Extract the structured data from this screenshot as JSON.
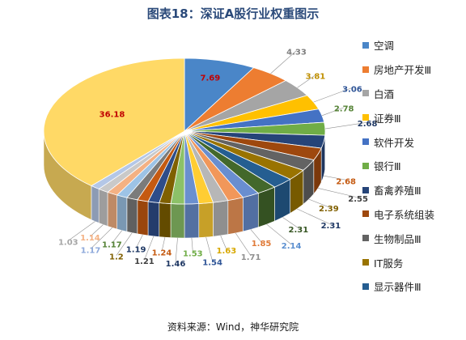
{
  "chart_data": {
    "type": "pie",
    "title": "图表18：深证A股行业权重图示",
    "values": [
      7.69,
      4.33,
      3.81,
      3.06,
      2.78,
      2.68,
      2.68,
      2.55,
      2.39,
      2.31,
      2.31,
      2.14,
      1.85,
      1.71,
      1.63,
      1.54,
      1.53,
      1.46,
      1.24,
      1.21,
      1.19,
      1.2,
      1.17,
      1.17,
      1.14,
      1.03,
      36.18
    ],
    "colors": [
      "#4a86c8",
      "#ed7d31",
      "#a5a5a5",
      "#ffc000",
      "#4472c4",
      "#70ad47",
      "#264478",
      "#9e480e",
      "#636363",
      "#997300",
      "#255e91",
      "#43682b",
      "#698ed0",
      "#f1975a",
      "#b7b7b7",
      "#ffcd33",
      "#6a8fcf",
      "#8cc168",
      "#7f6000",
      "#2e4d8a",
      "#c55a11",
      "#7b7b7b",
      "#9dc3e6",
      "#f4b183",
      "#c9c9c9",
      "#b4c7e7",
      "#ffd966"
    ],
    "label_colors": [
      "#c00000",
      "#7f7f7f",
      "#c09000",
      "#2f5597",
      "#548235",
      "#1f3864",
      "#c55a11",
      "#404040",
      "#806000",
      "#1f3864",
      "#375623",
      "#5b8fd0",
      "#e07b39",
      "#909090",
      "#d8a800",
      "#2f5597",
      "#70ad47",
      "#1f3864",
      "#c55a11",
      "#404040",
      "#1f3864",
      "#806000",
      "#548235",
      "#8ea9db",
      "#f4b183",
      "#a6a6a6",
      "#c00000"
    ],
    "legend": [
      "空调",
      "房地产开发Ⅲ",
      "白酒",
      "证券Ⅲ",
      "软件开发",
      "银行Ⅲ",
      "畜禽养殖Ⅲ",
      "电子系统组装",
      "生物制品Ⅲ",
      "IT服务",
      "显示器件Ⅲ"
    ],
    "source": "资料来源：Wind，神华研究院"
  }
}
